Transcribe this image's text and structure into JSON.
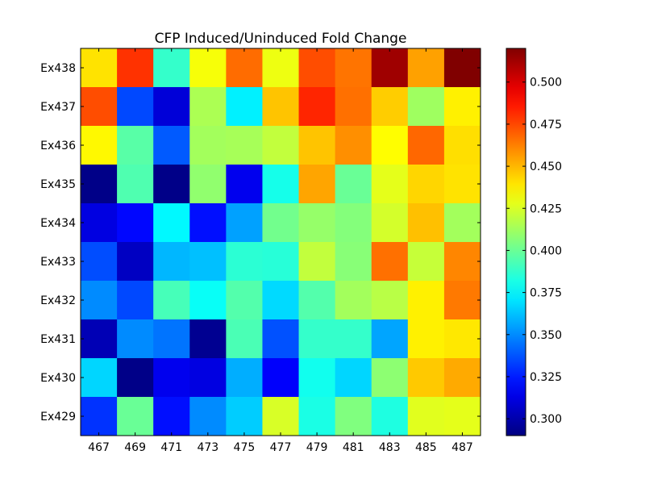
{
  "chart_data": {
    "type": "heatmap",
    "title": "CFP Induced/Uninduced Fold Change",
    "x_categories": [
      "467",
      "469",
      "471",
      "473",
      "475",
      "477",
      "479",
      "481",
      "483",
      "485",
      "487"
    ],
    "y_categories": [
      "Ex438",
      "Ex437",
      "Ex436",
      "Ex435",
      "Ex434",
      "Ex433",
      "Ex432",
      "Ex431",
      "Ex430",
      "Ex429"
    ],
    "colormap": "jet",
    "value_range": [
      0.29,
      0.52
    ],
    "colorbar_ticks": [
      "0.300",
      "0.325",
      "0.350",
      "0.375",
      "0.400",
      "0.425",
      "0.450",
      "0.475",
      "0.500"
    ],
    "values": [
      [
        0.44,
        0.48,
        0.388,
        0.432,
        0.467,
        0.43,
        0.474,
        0.465,
        0.513,
        0.455,
        0.52
      ],
      [
        0.474,
        0.335,
        0.31,
        0.415,
        0.373,
        0.447,
        0.483,
        0.466,
        0.445,
        0.412,
        0.437
      ],
      [
        0.435,
        0.396,
        0.339,
        0.413,
        0.414,
        0.42,
        0.447,
        0.459,
        0.434,
        0.468,
        0.441
      ],
      [
        0.292,
        0.394,
        0.292,
        0.409,
        0.315,
        0.381,
        0.454,
        0.4,
        0.428,
        0.443,
        0.44
      ],
      [
        0.312,
        0.32,
        0.375,
        0.322,
        0.355,
        0.402,
        0.41,
        0.406,
        0.424,
        0.448,
        0.413
      ],
      [
        0.336,
        0.305,
        0.36,
        0.362,
        0.386,
        0.385,
        0.42,
        0.407,
        0.466,
        0.421,
        0.461
      ],
      [
        0.35,
        0.335,
        0.392,
        0.378,
        0.395,
        0.368,
        0.395,
        0.413,
        0.418,
        0.437,
        0.464
      ],
      [
        0.302,
        0.35,
        0.345,
        0.294,
        0.393,
        0.337,
        0.388,
        0.388,
        0.356,
        0.437,
        0.439
      ],
      [
        0.367,
        0.292,
        0.315,
        0.312,
        0.358,
        0.318,
        0.38,
        0.367,
        0.408,
        0.446,
        0.453
      ],
      [
        0.33,
        0.4,
        0.322,
        0.35,
        0.365,
        0.425,
        0.382,
        0.405,
        0.383,
        0.427,
        0.428
      ]
    ]
  }
}
